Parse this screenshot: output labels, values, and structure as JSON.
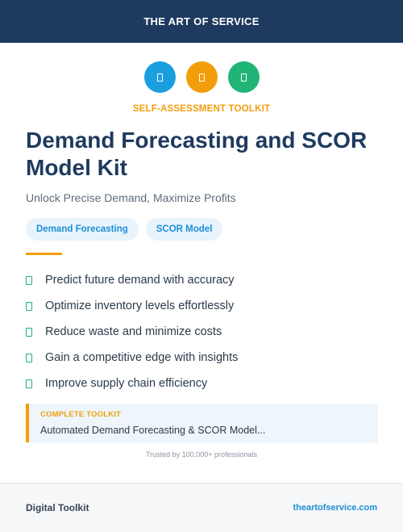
{
  "header": {
    "title": "THE ART OF SERVICE"
  },
  "icons": [
    {
      "name": "document-icon",
      "color": "#1b9ee0"
    },
    {
      "name": "document-icon",
      "color": "#f29e0c"
    },
    {
      "name": "document-icon",
      "color": "#20b477"
    }
  ],
  "eyebrow": "SELF-ASSESSMENT TOOLKIT",
  "title": "Demand Forecasting and SCOR Model Kit",
  "subtitle": "Unlock Precise Demand, Maximize Profits",
  "tags": [
    "Demand Forecasting",
    "SCOR Model"
  ],
  "benefits": [
    "Predict future demand with accuracy",
    "Optimize inventory levels effortlessly",
    "Reduce waste and minimize costs",
    "Gain a competitive edge with insights",
    "Improve supply chain efficiency"
  ],
  "callout": {
    "label": "COMPLETE TOOLKIT",
    "text": "Automated Demand Forecasting & SCOR Model..."
  },
  "trust": "Trusted by 100,000+ professionals",
  "footer": {
    "left": "Digital Toolkit",
    "right": "theartofservice.com"
  },
  "colors": {
    "navy": "#1e3a5f",
    "accent_orange": "#f29e0c",
    "accent_blue": "#1b8fd6",
    "accent_green": "#20b477"
  }
}
